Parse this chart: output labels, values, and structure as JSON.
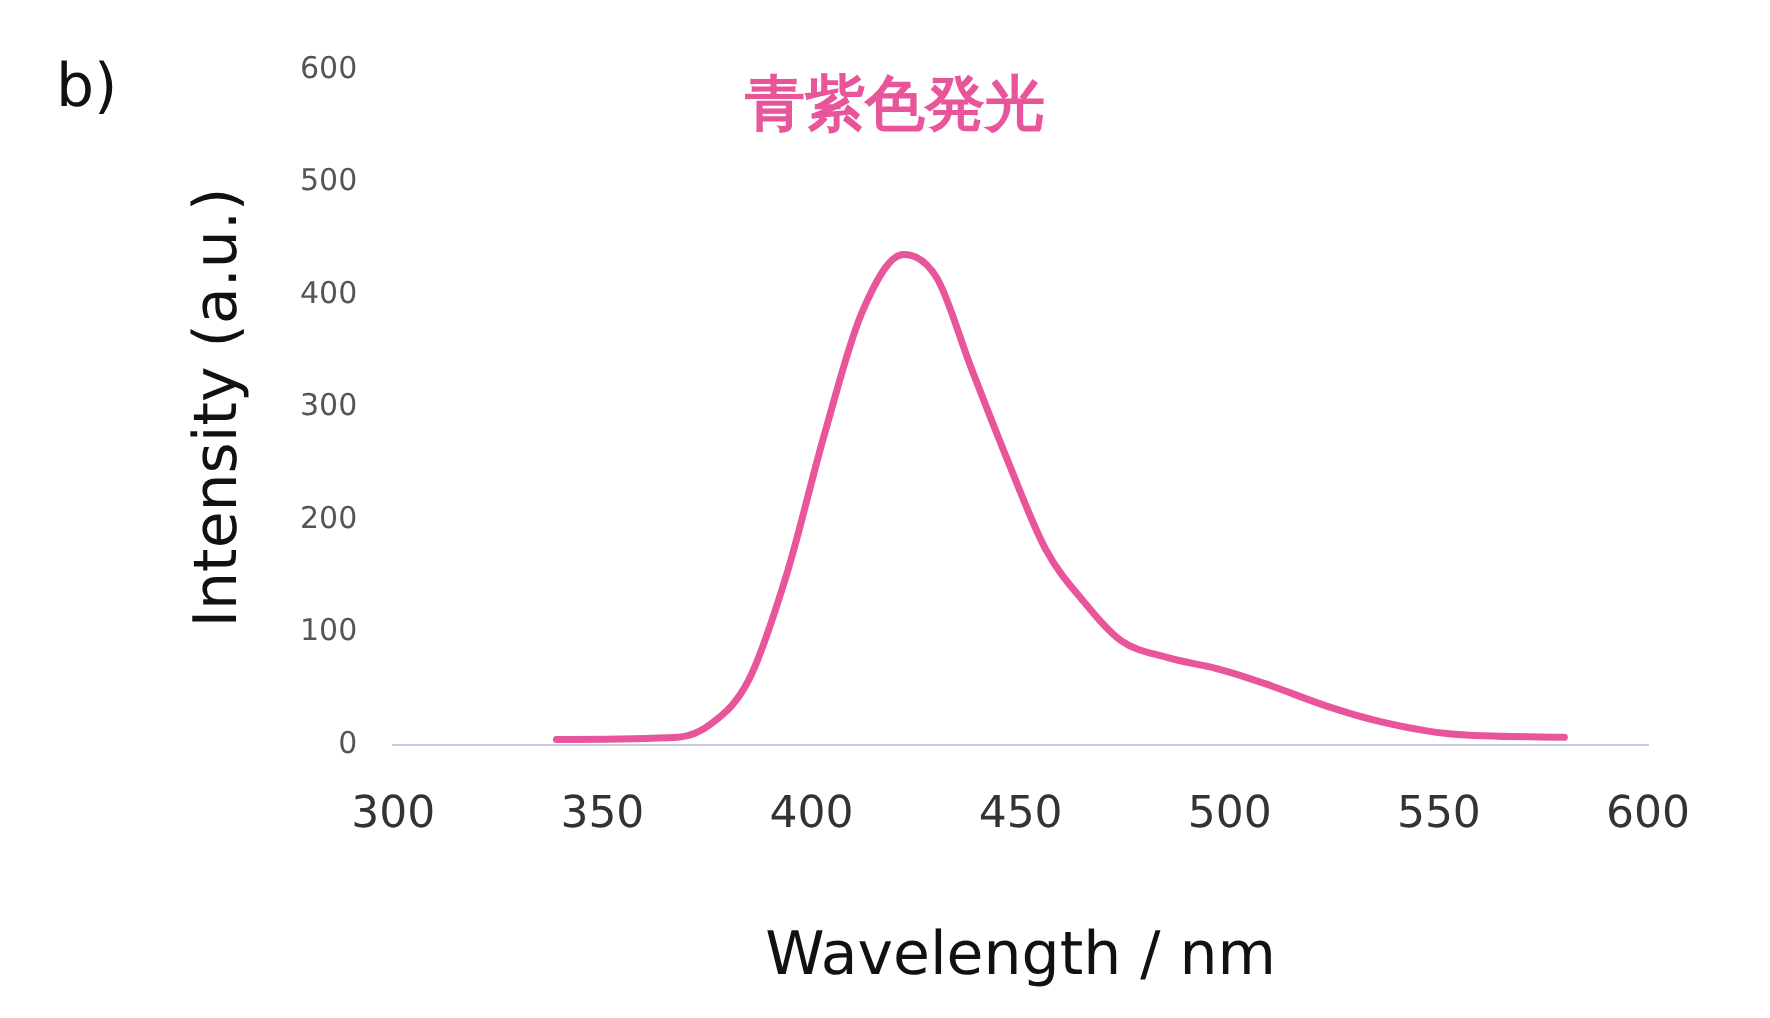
{
  "chart_data": {
    "type": "line",
    "title": "青紫色発光",
    "xlabel": "Wavelength / nm",
    "ylabel": "Intensity (a.u.)",
    "annotations": [
      "b)"
    ],
    "x": [
      339,
      368,
      376,
      385,
      394,
      403,
      412,
      422,
      430,
      438,
      447,
      456,
      465,
      474,
      485,
      498,
      509,
      523,
      536,
      553,
      580
    ],
    "series": [
      {
        "color": "#e8559a",
        "values": [
          5,
          7,
          19,
          58,
          151,
          275,
          384,
          436,
          415,
          337,
          252,
          174,
          128,
          93,
          78,
          67,
          54,
          35,
          21,
          10,
          7
        ]
      }
    ],
    "xlim": [
      300,
      600
    ],
    "xticks": [
      300,
      350,
      400,
      450,
      500,
      550,
      600
    ],
    "ylim": [
      0,
      600
    ],
    "yticks": [
      0,
      100,
      200,
      300,
      400,
      500,
      600
    ],
    "grid": false,
    "legend": false,
    "marker": "none",
    "line_style": "solid"
  }
}
